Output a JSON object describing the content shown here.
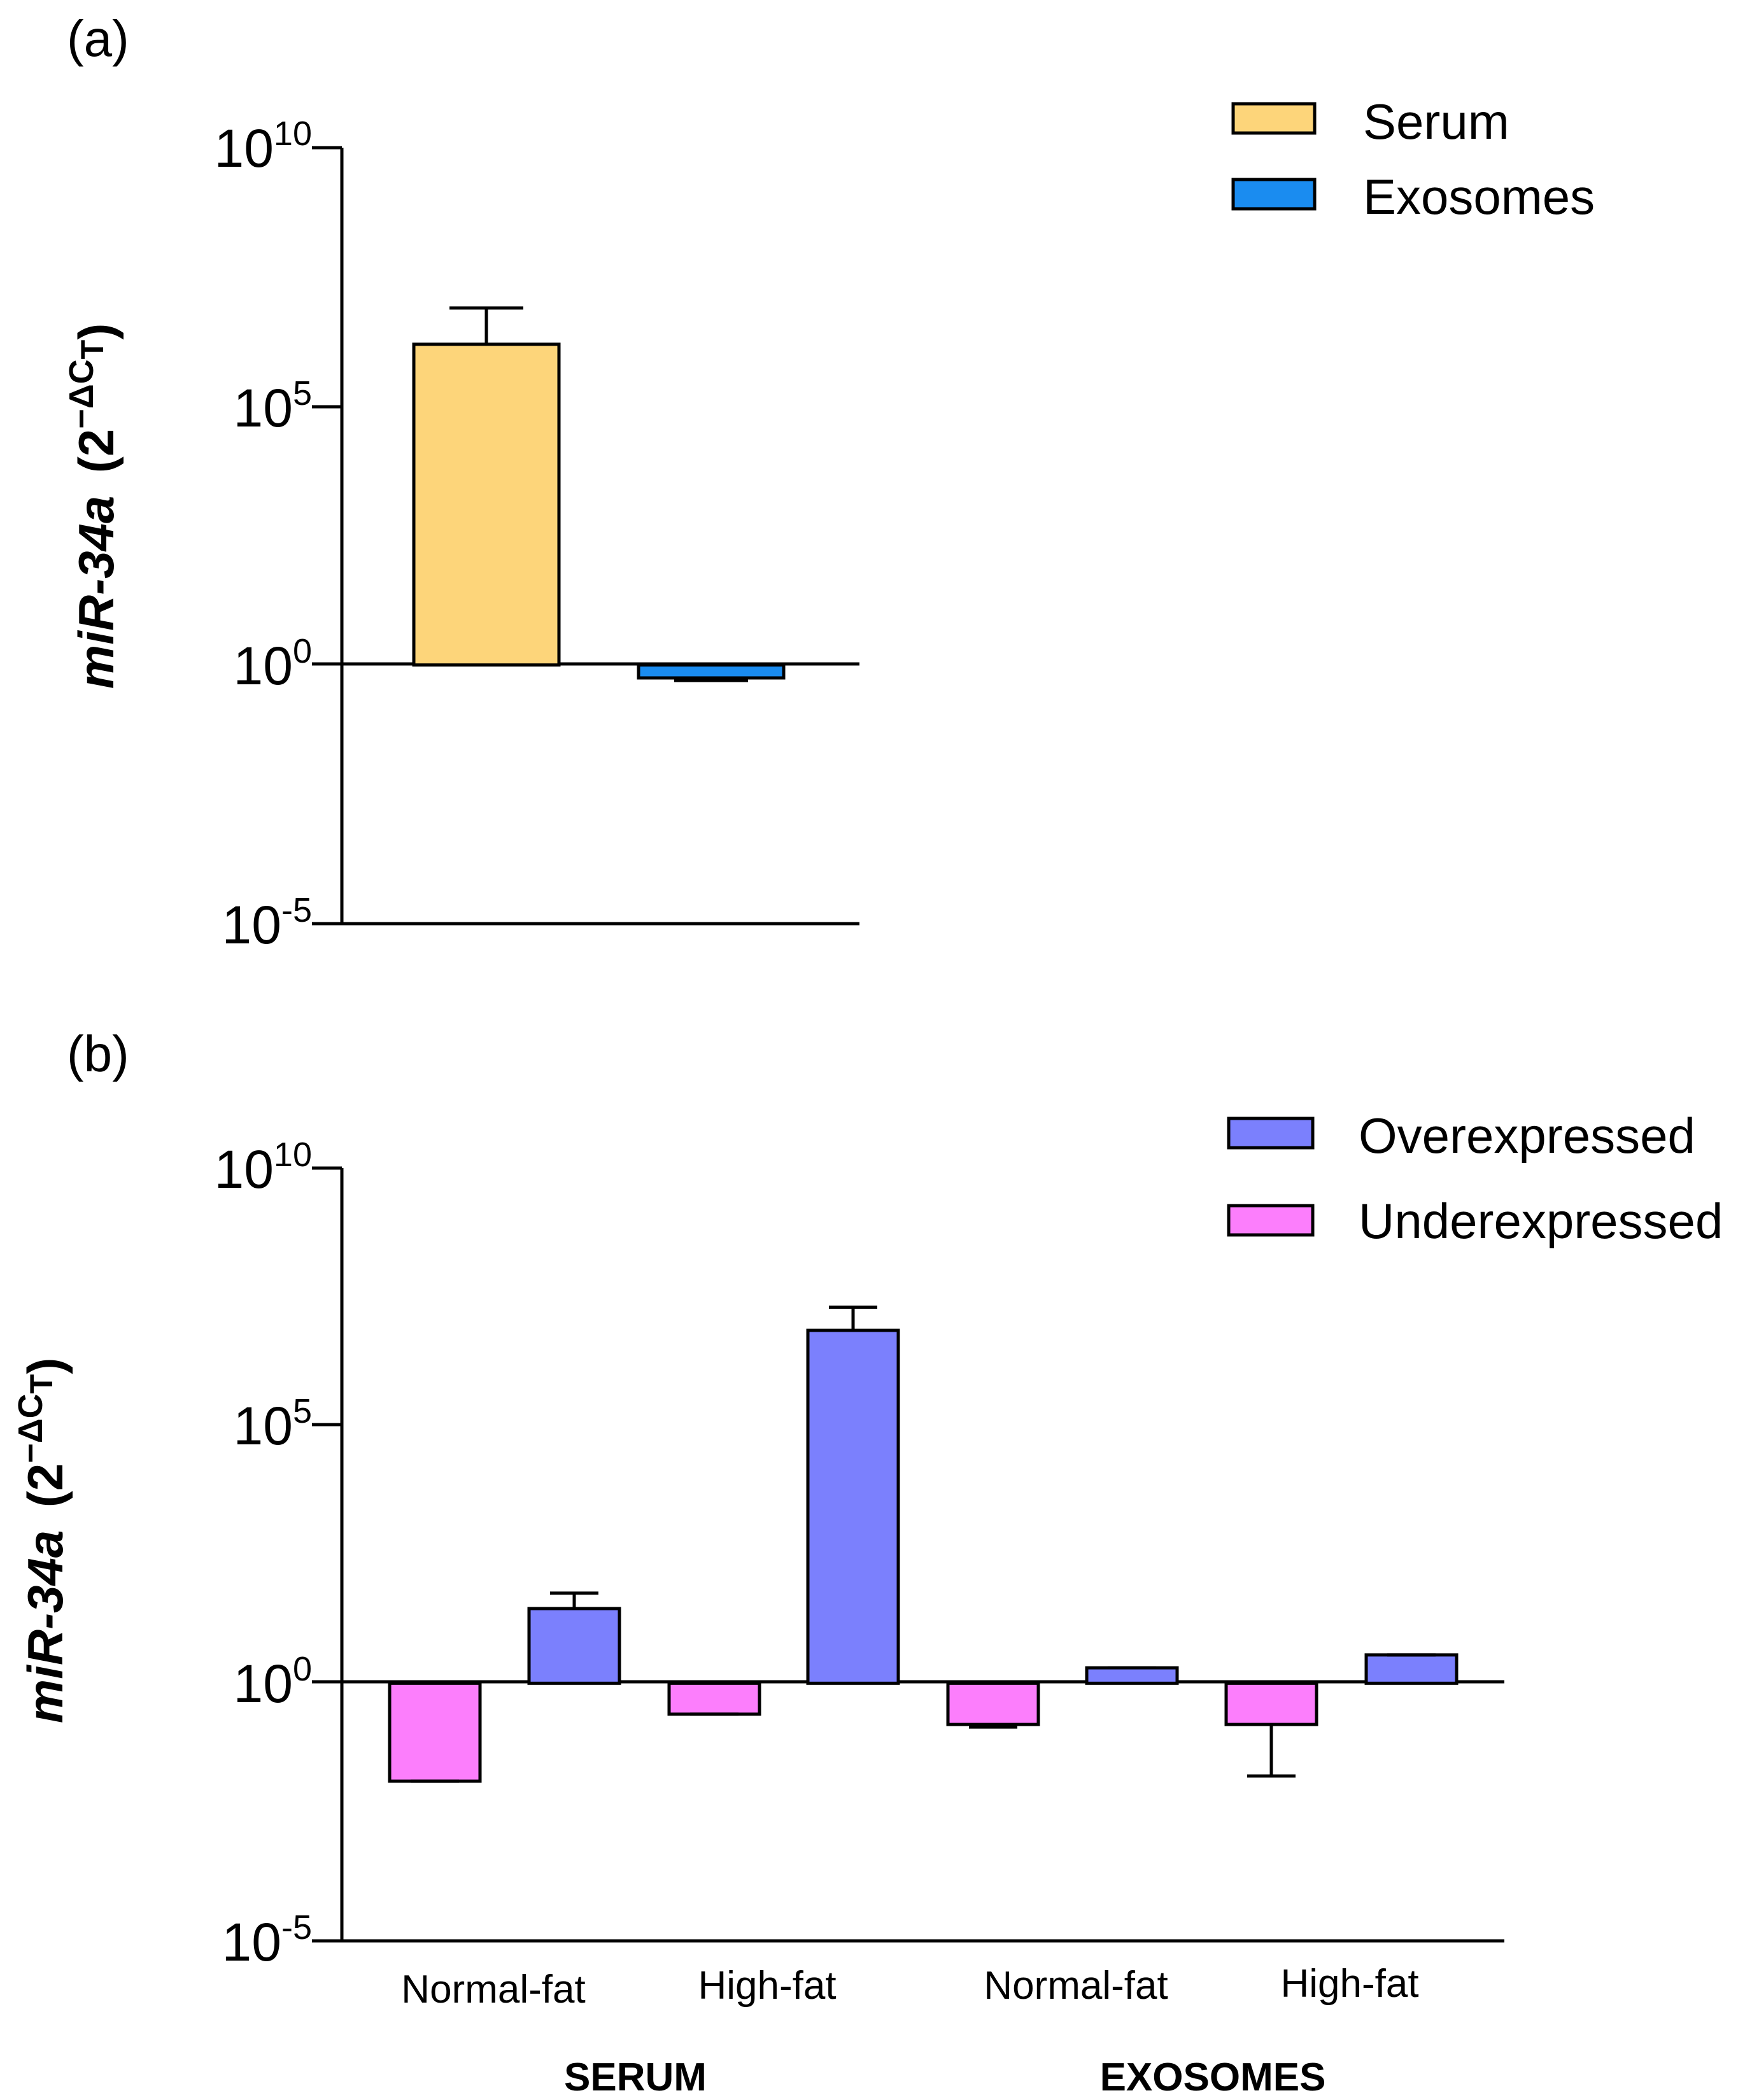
{
  "chart_data": [
    {
      "type": "bar",
      "panel_label": "(a)",
      "ylabel": {
        "gene": "miR-34a",
        "unit_open": "(2",
        "unit_exp": "−ΔC",
        "unit_sub": "T",
        "unit_close": ")"
      },
      "yscale": "log10",
      "ylim": [
        -5,
        10
      ],
      "baseline": 0,
      "yticks": [
        {
          "base": "10",
          "exp": "10",
          "value": 10
        },
        {
          "base": "10",
          "exp": "5",
          "value": 5
        },
        {
          "base": "10",
          "exp": "0",
          "value": 0
        },
        {
          "base": "10",
          "exp": "-5",
          "value": -5
        }
      ],
      "series": [
        {
          "name": "Serum",
          "color": "#FDD57A",
          "log10_value": 6.2,
          "log10_error_top": 6.9
        },
        {
          "name": "Exosomes",
          "color": "#1A8CF0",
          "log10_value": -0.25,
          "log10_error_bottom": -0.25
        }
      ],
      "legend": [
        {
          "label": "Serum",
          "color": "#FDD57A"
        },
        {
          "label": "Exosomes",
          "color": "#1A8CF0"
        }
      ]
    },
    {
      "type": "bar",
      "panel_label": "(b)",
      "ylabel": {
        "gene": "miR-34a",
        "unit_open": "(2",
        "unit_exp": "−ΔC",
        "unit_sub": "T",
        "unit_close": ")"
      },
      "yscale": "log10",
      "ylim": [
        -5,
        10
      ],
      "baseline": 0,
      "yticks": [
        {
          "base": "10",
          "exp": "10",
          "value": 10
        },
        {
          "base": "10",
          "exp": "5",
          "value": 5
        },
        {
          "base": "10",
          "exp": "0",
          "value": 0
        },
        {
          "base": "10",
          "exp": "-5",
          "value": -5
        }
      ],
      "categories": [
        "Normal-fat",
        "High-fat",
        "Normal-fat",
        "High-fat"
      ],
      "groups": [
        {
          "label": "SERUM",
          "categories": [
            0,
            1
          ]
        },
        {
          "label": "EXOSOMES",
          "categories": [
            2,
            3
          ]
        }
      ],
      "series": [
        {
          "name": "Underexpressed",
          "color": "#FC7EFC",
          "log10_values": [
            -1.9,
            -0.6,
            -0.8,
            -0.8
          ],
          "log10_error_ends": [
            -1.9,
            -0.6,
            -0.85,
            -1.8
          ]
        },
        {
          "name": "Overexpressed",
          "color": "#7B80FD",
          "log10_values": [
            1.45,
            6.85,
            0.3,
            0.55
          ],
          "log10_error_ends": [
            1.75,
            7.3,
            0.3,
            0.55
          ]
        }
      ],
      "legend": [
        {
          "label": "Overexpressed",
          "color": "#7B80FD"
        },
        {
          "label": "Underexpressed",
          "color": "#FC7EFC"
        }
      ]
    }
  ]
}
